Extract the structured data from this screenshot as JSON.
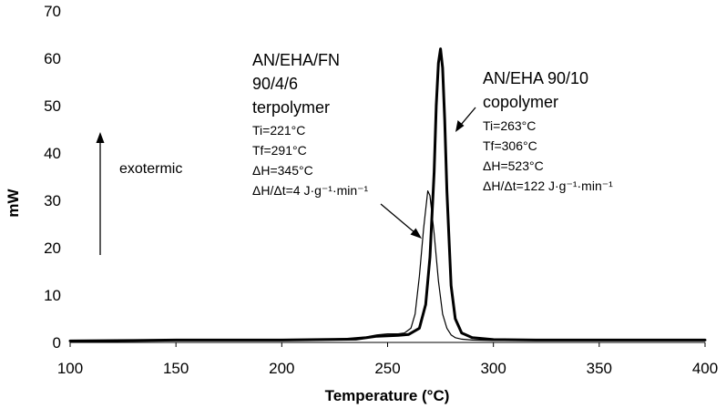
{
  "chart_data": {
    "type": "line",
    "xlabel": "Temperature (°C)",
    "ylabel": "mW",
    "xlim": [
      100,
      400
    ],
    "ylim": [
      0,
      70
    ],
    "x_ticks": [
      100,
      150,
      200,
      250,
      300,
      350,
      400
    ],
    "y_ticks": [
      0,
      10,
      20,
      30,
      40,
      50,
      60,
      70
    ],
    "grid": false,
    "legend": "none",
    "series": [
      {
        "style": "thin",
        "color": "#000000",
        "x": [
          100,
          130,
          150,
          200,
          230,
          240,
          245,
          250,
          255,
          258,
          261,
          263,
          265,
          267,
          269,
          270,
          272,
          274,
          276,
          278,
          280,
          282,
          285,
          290,
          300,
          320,
          350,
          380,
          400
        ],
        "y": [
          0.3,
          0.4,
          0.4,
          0.5,
          0.8,
          1.2,
          1.6,
          1.8,
          1.8,
          2.0,
          3.0,
          6.0,
          14.0,
          24.0,
          32.0,
          31.0,
          23.0,
          13.0,
          6.0,
          3.0,
          1.6,
          1.0,
          0.7,
          0.5,
          0.4,
          0.4,
          0.5,
          0.5,
          0.6
        ]
      },
      {
        "style": "thick",
        "color": "#000000",
        "x": [
          100,
          130,
          150,
          200,
          235,
          240,
          245,
          250,
          255,
          260,
          265,
          268,
          270,
          272,
          273,
          274,
          275,
          276,
          277,
          278,
          280,
          282,
          285,
          290,
          300,
          320,
          350,
          380,
          400
        ],
        "y": [
          0.3,
          0.4,
          0.5,
          0.5,
          0.7,
          1.0,
          1.3,
          1.4,
          1.5,
          1.7,
          3.0,
          8.0,
          18.0,
          36.0,
          50.0,
          59.0,
          62.0,
          58.0,
          47.0,
          32.0,
          12.0,
          5.0,
          2.0,
          1.0,
          0.6,
          0.5,
          0.5,
          0.5,
          0.5
        ]
      }
    ],
    "annotations": {
      "terpolymer": {
        "title_lines": [
          "AN/EHA/FN",
          "90/4/6",
          "terpolymer"
        ],
        "detail_lines": [
          "Ti=221°C",
          "Tf=291°C",
          "ΔH=345°C",
          "ΔH/Δt=4 J·g⁻¹·min⁻¹"
        ]
      },
      "copolymer": {
        "title_lines": [
          "AN/EHA 90/10",
          "copolymer"
        ],
        "detail_lines": [
          "Ti=263°C",
          "Tf=306°C",
          "ΔH=523°C",
          "ΔH/Δt=122 J·g⁻¹·min⁻¹"
        ]
      },
      "exotermic_label": "exotermic"
    }
  }
}
